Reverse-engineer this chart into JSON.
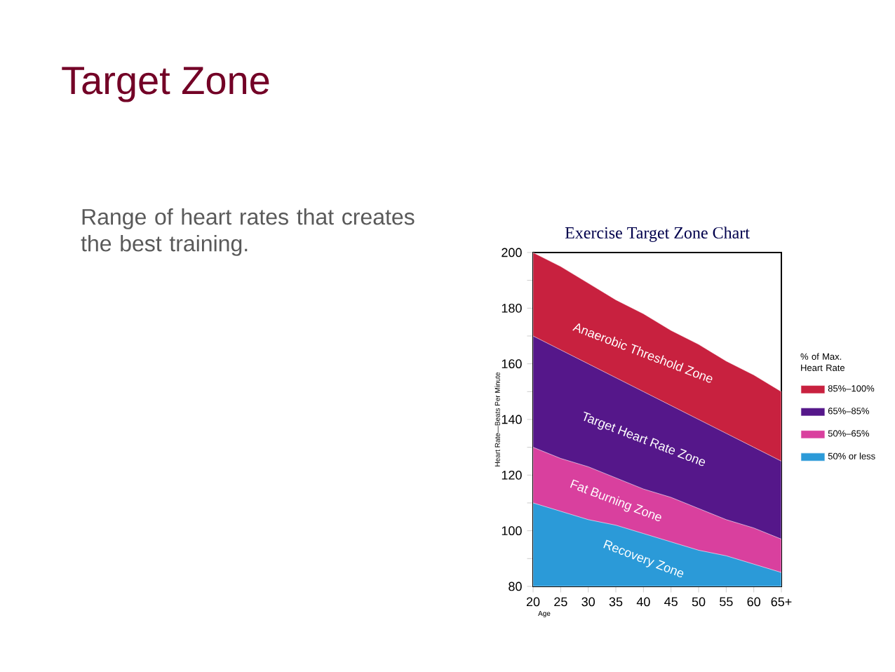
{
  "chart_data": {
    "type": "area",
    "title": "Exercise Target Zone Chart",
    "xlabel": "Age",
    "ylabel": "Heart Rate—Beats Per Minute",
    "legend_title": "% of Max. Heart Rate",
    "legend": "right",
    "categories": [
      "20",
      "25",
      "30",
      "35",
      "40",
      "45",
      "50",
      "55",
      "60",
      "65+"
    ],
    "ylim": [
      80,
      200
    ],
    "yticks": [
      80,
      {
        "value": 90,
        "label": null
      },
      100,
      {
        "value": 110,
        "label": null
      },
      120,
      {
        "value": 130,
        "label": null
      },
      140,
      {
        "value": 150,
        "label": null
      },
      160,
      {
        "value": 170,
        "label": null
      },
      180,
      {
        "value": 190,
        "label": null
      },
      200
    ],
    "series": [
      {
        "name": "85%–100%",
        "color": "#c8213f",
        "values": [
          200,
          195,
          189,
          183,
          178,
          172,
          167,
          161,
          156,
          150
        ]
      },
      {
        "name": "65%–85%",
        "color": "#55178a",
        "values": [
          170,
          165,
          160,
          155,
          150,
          145,
          140,
          135,
          130,
          125
        ]
      },
      {
        "name": "50%–65%",
        "color": "#d9409e",
        "values": [
          130,
          126,
          123,
          119,
          115,
          112,
          108,
          104,
          101,
          97
        ]
      },
      {
        "name": "50% or less",
        "color": "#2b9ad8",
        "values": [
          110,
          107,
          104,
          102,
          99,
          96,
          93,
          91,
          88,
          85
        ]
      }
    ],
    "annotations": [
      "Target Zone",
      "Range of heart rates that creates the best training.",
      "Anaerobic Threshold Zone",
      "Target Heart Rate Zone",
      "Fat Burning Zone",
      "Recovery Zone"
    ]
  }
}
